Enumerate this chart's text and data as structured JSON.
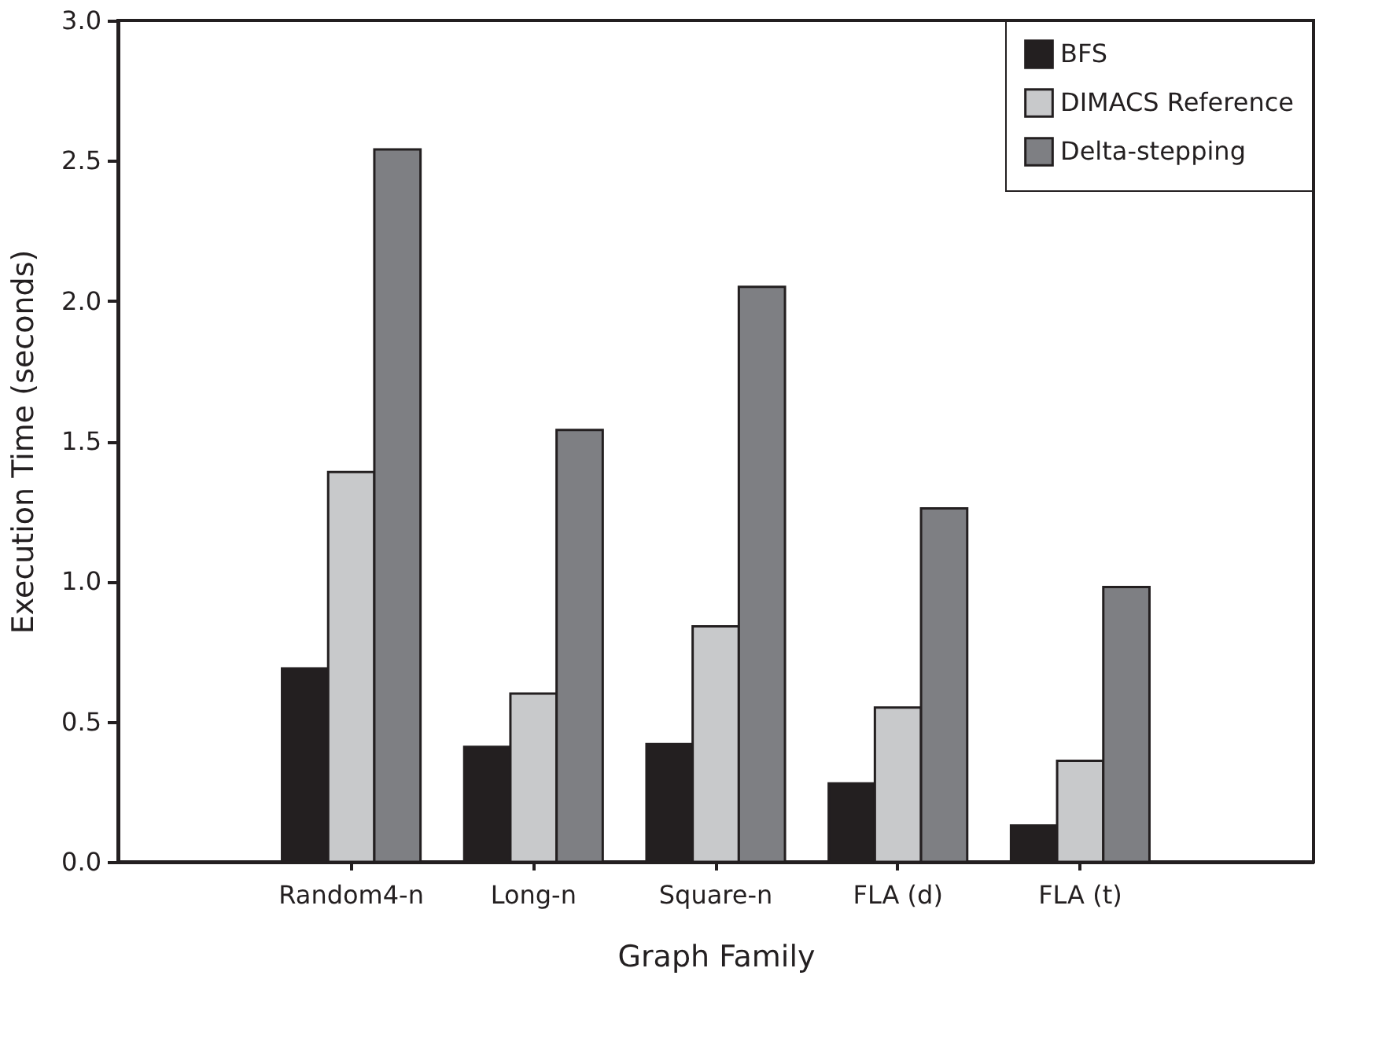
{
  "chart_data": {
    "type": "bar",
    "xlabel": "Graph Family",
    "ylabel": "Execution Time (seconds)",
    "categories": [
      "Random4-n",
      "Long-n",
      "Square-n",
      "FLA (d)",
      "FLA (t)"
    ],
    "series": [
      {
        "name": "BFS",
        "color": "#231f20",
        "values": [
          0.69,
          0.41,
          0.42,
          0.28,
          0.13
        ]
      },
      {
        "name": "DIMACS Reference",
        "color": "#c8c9cb",
        "values": [
          1.39,
          0.6,
          0.84,
          0.55,
          0.36
        ]
      },
      {
        "name": "Delta-stepping",
        "color": "#7e7f83",
        "values": [
          2.54,
          1.54,
          2.05,
          1.26,
          0.98
        ]
      }
    ],
    "ylim": [
      0,
      3
    ],
    "yticks": [
      {
        "value": 0,
        "label": "0.0"
      },
      {
        "value": 0.5,
        "label": "0.5"
      },
      {
        "value": 1,
        "label": "1.0"
      },
      {
        "value": 1.5,
        "label": "1.5"
      },
      {
        "value": 2,
        "label": "2.0"
      },
      {
        "value": 2.5,
        "label": "2.5"
      },
      {
        "value": 3,
        "label": "3.0"
      }
    ],
    "grid": false,
    "legend": "top right"
  }
}
